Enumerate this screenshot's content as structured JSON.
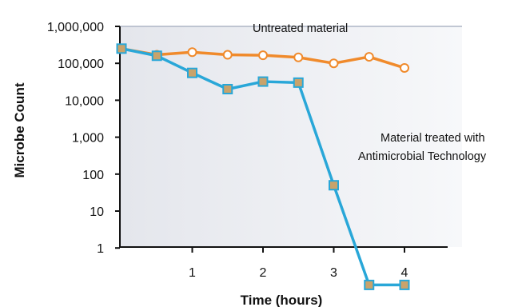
{
  "chart_data": {
    "type": "line",
    "xlabel": "Time (hours)",
    "ylabel": "Microbe Count",
    "yscale": "log",
    "ylim": [
      0.1,
      1000000
    ],
    "xlim": [
      0,
      4.5
    ],
    "x_ticks": [
      1,
      2,
      3,
      4
    ],
    "x_tick_labels": [
      "1",
      "2",
      "3",
      "4"
    ],
    "y_ticks": [
      1,
      10,
      100,
      1000,
      10000,
      100000,
      1000000
    ],
    "y_tick_labels": [
      "1",
      "10",
      "100",
      "1,000",
      "10,000",
      "100,000",
      "1,000,000"
    ],
    "grid": false,
    "annotations": [
      {
        "text": "Untreated material",
        "series": "untreated"
      },
      {
        "text": "Material treated with",
        "series": "treated"
      },
      {
        "text": "Antimicrobial Technology",
        "series": "treated"
      }
    ],
    "series": [
      {
        "id": "untreated",
        "marker": "circle",
        "color": "#f08a2b",
        "fill": "#ffffff",
        "x": [
          0,
          0.5,
          1,
          1.5,
          2,
          2.5,
          3,
          3.5,
          4
        ],
        "y": [
          250000,
          170000,
          200000,
          170000,
          165000,
          145000,
          100000,
          150000,
          75000
        ]
      },
      {
        "id": "treated",
        "marker": "square",
        "color": "#29a7d8",
        "fill": "#c9a36b",
        "x": [
          0,
          0.5,
          1,
          1.5,
          2,
          2.5,
          3,
          3.5,
          4
        ],
        "y": [
          250000,
          160000,
          55000,
          20000,
          32000,
          30000,
          50,
          0.1,
          0.1
        ]
      }
    ]
  }
}
